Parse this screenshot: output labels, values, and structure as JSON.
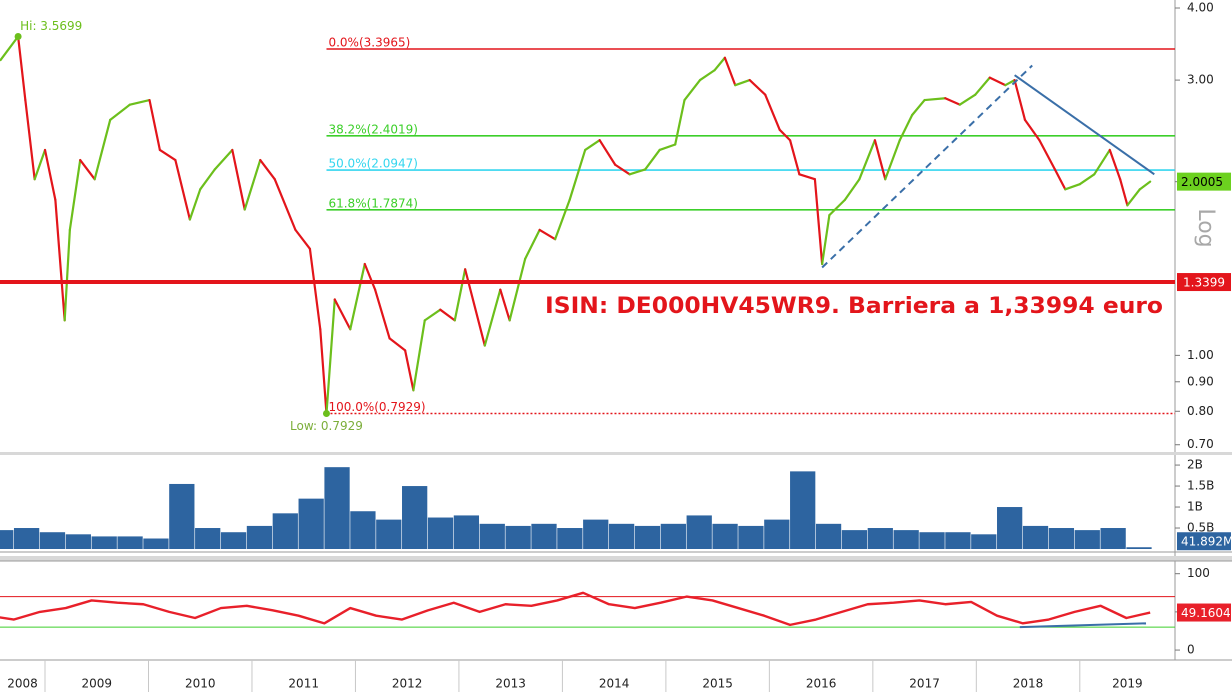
{
  "x_axis": {
    "xlim": [
      2008.565,
      2019.92
    ],
    "xticks": [
      2009,
      2010,
      2011,
      2012,
      2013,
      2014,
      2015,
      2016,
      2017,
      2018,
      2019
    ],
    "categories": [
      "2008",
      "2009",
      "2010",
      "2011",
      "2012",
      "2013",
      "2014",
      "2015",
      "2016",
      "2017",
      "2018",
      "2019"
    ]
  },
  "chart_data": [
    {
      "type": "line",
      "log": true,
      "scale_label": "Log",
      "colors": {
        "up": "#6cbf1c",
        "down": "#e3151b"
      },
      "high_label": "Hi: 3.5699",
      "low_label": "Low: 0.7929",
      "annotation": "ISIN: DE000HV45WR9. Barriera a 1,33994 euro",
      "x": [
        2008.57,
        2008.74,
        2008.81,
        2008.9,
        2009.0,
        2009.1,
        2009.19,
        2009.24,
        2009.34,
        2009.48,
        2009.63,
        2009.82,
        2010.01,
        2010.11,
        2010.26,
        2010.4,
        2010.5,
        2010.64,
        2010.81,
        2010.93,
        2011.08,
        2011.22,
        2011.42,
        2011.56,
        2011.66,
        2011.72,
        2011.8,
        2011.95,
        2012.09,
        2012.19,
        2012.33,
        2012.48,
        2012.56,
        2012.67,
        2012.82,
        2012.96,
        2013.06,
        2013.25,
        2013.4,
        2013.49,
        2013.64,
        2013.78,
        2013.93,
        2014.07,
        2014.22,
        2014.36,
        2014.51,
        2014.65,
        2014.8,
        2014.94,
        2015.09,
        2015.18,
        2015.33,
        2015.47,
        2015.57,
        2015.67,
        2015.81,
        2015.96,
        2016.1,
        2016.2,
        2016.29,
        2016.44,
        2016.51,
        2016.58,
        2016.73,
        2016.87,
        2017.02,
        2017.12,
        2017.26,
        2017.38,
        2017.5,
        2017.7,
        2017.84,
        2017.99,
        2018.13,
        2018.28,
        2018.37,
        2018.47,
        2018.61,
        2018.76,
        2018.86,
        2019.0,
        2019.14,
        2019.29,
        2019.39,
        2019.46,
        2019.58,
        2019.68
      ],
      "values": [
        3.25,
        3.5699,
        2.77,
        2.02,
        2.27,
        1.86,
        1.15,
        1.65,
        2.18,
        2.02,
        2.56,
        2.72,
        2.77,
        2.27,
        2.18,
        1.72,
        1.94,
        2.1,
        2.27,
        1.79,
        2.18,
        2.02,
        1.65,
        1.53,
        1.11,
        0.7929,
        1.25,
        1.11,
        1.44,
        1.3,
        1.07,
        1.02,
        0.87,
        1.15,
        1.2,
        1.15,
        1.41,
        1.04,
        1.3,
        1.15,
        1.47,
        1.65,
        1.59,
        1.86,
        2.27,
        2.36,
        2.14,
        2.06,
        2.1,
        2.27,
        2.32,
        2.77,
        3.0,
        3.12,
        3.28,
        2.94,
        3.0,
        2.83,
        2.46,
        2.36,
        2.06,
        2.02,
        1.44,
        1.75,
        1.86,
        2.02,
        2.36,
        2.02,
        2.36,
        2.61,
        2.77,
        2.79,
        2.72,
        2.83,
        3.03,
        2.94,
        3.0,
        2.56,
        2.36,
        2.1,
        1.94,
        1.98,
        2.06,
        2.27,
        2.02,
        1.82,
        1.94,
        2.0005
      ],
      "ylim": [
        0.68,
        4.13
      ],
      "yticks": [
        {
          "value": 0.7,
          "label": "0.70"
        },
        {
          "value": 0.8,
          "label": "0.80"
        },
        {
          "value": 0.9,
          "label": "0.90"
        },
        {
          "value": 1,
          "label": "1.00"
        },
        {
          "value": 2,
          "label": "2.00"
        },
        {
          "value": 3,
          "label": "3.00"
        },
        {
          "value": 4,
          "label": "4.00"
        }
      ],
      "levels": [
        {
          "label": "0.0%(3.3965)",
          "value": 3.3965,
          "color": "#e3151b"
        },
        {
          "label": "38.2%(2.4019)",
          "value": 2.4019,
          "color": "#3ccf2a"
        },
        {
          "label": "50.0%(2.0947)",
          "value": 2.0947,
          "color": "#34d6ef"
        },
        {
          "label": "61.8%(1.7874)",
          "value": 1.7874,
          "color": "#3ccf2a"
        },
        {
          "label": "100.0%(0.7929)",
          "value": 0.7929,
          "color": "#e3151b",
          "style": "dotted"
        }
      ],
      "barrier": {
        "value": 1.33994,
        "label": "1.3399",
        "color": "#e3151b"
      },
      "trendlines": [
        {
          "points": [
            [
              2016.51,
              1.42
            ],
            [
              2018.54,
              3.18
            ]
          ],
          "color": "#3a6fa8",
          "dashed": true
        },
        {
          "points": [
            [
              2018.37,
              3.06
            ],
            [
              2019.72,
              2.06
            ]
          ],
          "color": "#3a6fa8"
        }
      ]
    },
    {
      "type": "bar",
      "color": "#2d64a0",
      "x": [
        2008.45,
        2008.7,
        2008.95,
        2009.2,
        2009.45,
        2009.7,
        2009.95,
        2010.2,
        2010.45,
        2010.7,
        2010.95,
        2011.2,
        2011.45,
        2011.7,
        2011.95,
        2012.2,
        2012.45,
        2012.7,
        2012.95,
        2013.2,
        2013.45,
        2013.7,
        2013.95,
        2014.2,
        2014.45,
        2014.7,
        2014.95,
        2015.2,
        2015.45,
        2015.7,
        2015.95,
        2016.2,
        2016.45,
        2016.7,
        2016.95,
        2017.2,
        2017.45,
        2017.7,
        2017.95,
        2018.2,
        2018.45,
        2018.7,
        2018.95,
        2019.2,
        2019.45
      ],
      "values": [
        0.45,
        0.5,
        0.4,
        0.35,
        0.3,
        0.3,
        0.25,
        1.55,
        0.5,
        0.4,
        0.55,
        0.85,
        1.2,
        1.95,
        0.9,
        0.7,
        1.5,
        0.75,
        0.8,
        0.6,
        0.55,
        0.6,
        0.5,
        0.7,
        0.6,
        0.55,
        0.6,
        0.8,
        0.6,
        0.55,
        0.7,
        1.85,
        0.6,
        0.45,
        0.5,
        0.45,
        0.4,
        0.4,
        0.35,
        1.0,
        0.55,
        0.5,
        0.45,
        0.5,
        0.041892
      ],
      "value_labels": [
        null,
        null,
        null,
        null,
        null,
        null,
        null,
        null,
        null,
        null,
        null,
        null,
        null,
        null,
        null,
        null,
        null,
        null,
        null,
        null,
        null,
        null,
        null,
        null,
        null,
        null,
        null,
        null,
        null,
        null,
        null,
        null,
        null,
        null,
        null,
        null,
        null,
        null,
        null,
        null,
        null,
        null,
        null,
        null,
        "41.892M"
      ],
      "ylim": [
        0,
        2.24
      ],
      "yticks": [
        {
          "value": 0.5,
          "label": "0.5B"
        },
        {
          "value": 1,
          "label": "1B"
        },
        {
          "value": 1.5,
          "label": "1.5B"
        },
        {
          "value": 2,
          "label": "2B"
        }
      ]
    },
    {
      "type": "line",
      "color": "#e8202a",
      "x": [
        2008.45,
        2008.7,
        2008.95,
        2009.2,
        2009.45,
        2009.7,
        2009.95,
        2010.2,
        2010.45,
        2010.7,
        2010.95,
        2011.2,
        2011.45,
        2011.7,
        2011.95,
        2012.2,
        2012.45,
        2012.7,
        2012.95,
        2013.2,
        2013.45,
        2013.7,
        2013.95,
        2014.2,
        2014.45,
        2014.7,
        2014.95,
        2015.2,
        2015.45,
        2015.7,
        2015.95,
        2016.2,
        2016.45,
        2016.7,
        2016.95,
        2017.2,
        2017.45,
        2017.7,
        2017.95,
        2018.2,
        2018.45,
        2018.7,
        2018.95,
        2019.2,
        2019.45,
        2019.68
      ],
      "values": [
        45,
        40,
        50,
        55,
        65,
        62,
        60,
        50,
        42,
        55,
        58,
        52,
        45,
        35,
        55,
        45,
        40,
        52,
        62,
        50,
        60,
        58,
        65,
        75,
        60,
        55,
        62,
        70,
        65,
        55,
        45,
        33,
        40,
        50,
        60,
        62,
        65,
        60,
        63,
        45,
        35,
        40,
        50,
        58,
        42,
        49.1604
      ],
      "ylim": [
        -13,
        114
      ],
      "yticks": [
        0,
        50,
        100
      ],
      "levels": [
        {
          "value": 70,
          "color": "#e3151b"
        },
        {
          "value": 30,
          "color": "#3ccf2a"
        }
      ],
      "trendlines": [
        {
          "points": [
            [
              2018.42,
              30
            ],
            [
              2019.64,
              35
            ]
          ],
          "color": "#3a6fa8"
        }
      ]
    }
  ]
}
